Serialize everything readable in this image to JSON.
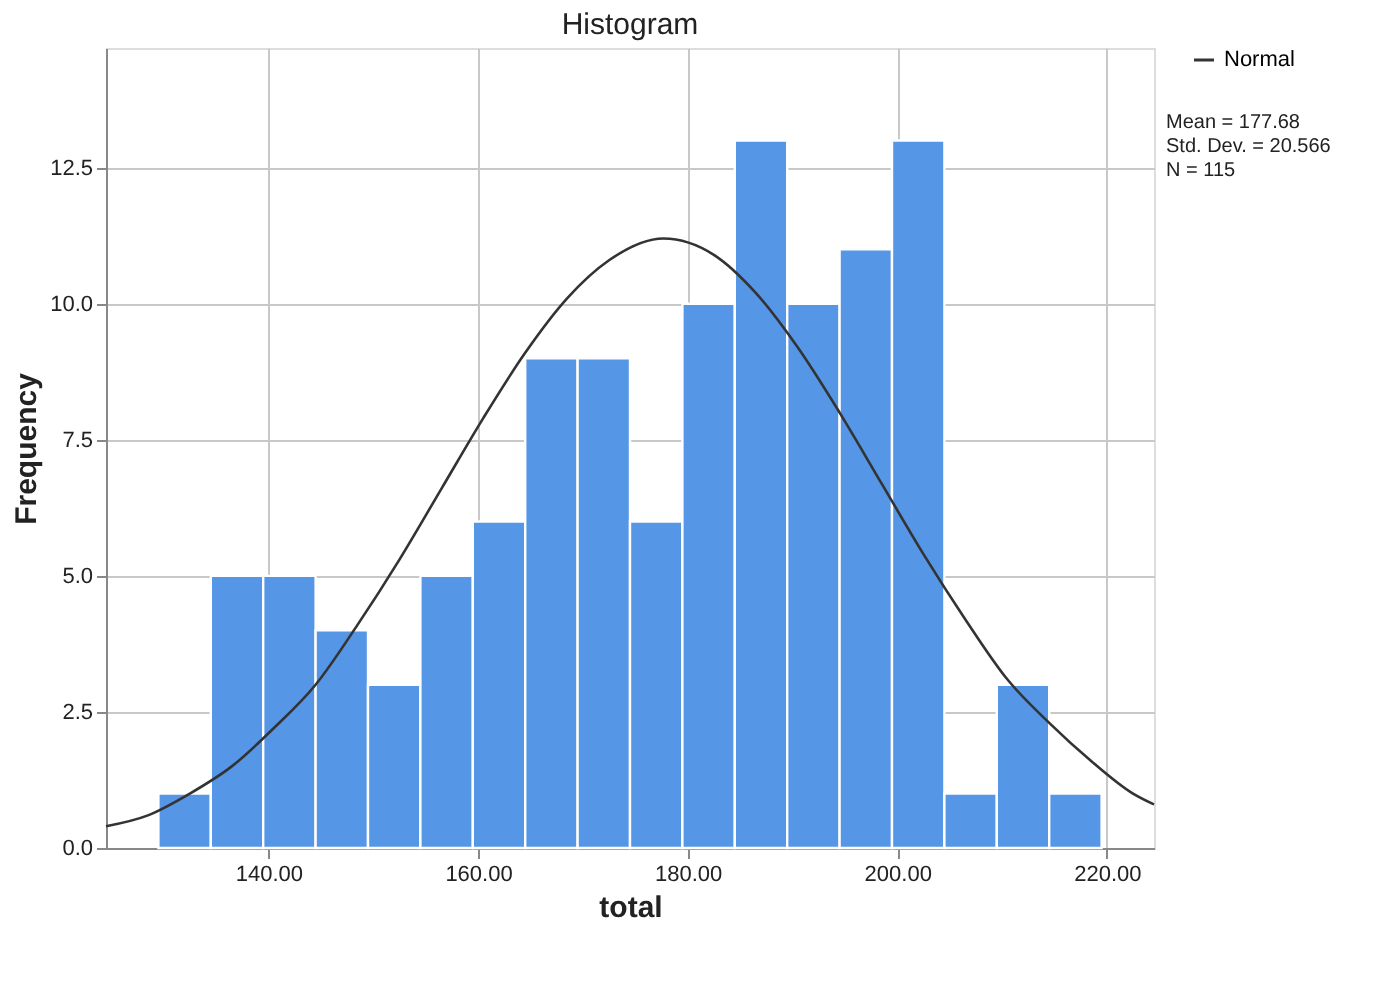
{
  "chart_data": {
    "type": "histogram",
    "title": "Histogram",
    "xlabel": "total",
    "ylabel": "Frequency",
    "bins": [
      129.5,
      134.5,
      139.5,
      144.5,
      149.5,
      154.5,
      159.5,
      164.5,
      169.5,
      174.5,
      179.5,
      184.5,
      189.5,
      194.5,
      199.5,
      204.5,
      209.5,
      214.5,
      219.5
    ],
    "series": [
      {
        "color": "#5596e6",
        "values": [
          1,
          5,
          5,
          4,
          3,
          5,
          6,
          9,
          9,
          6,
          10,
          13,
          10,
          11,
          13,
          1,
          3,
          1
        ]
      },
      {
        "type": "line",
        "name": "Normal",
        "color": "#333333",
        "x": [
          124.5,
          128.5,
          132.5,
          136.5,
          140.5,
          144.5,
          148.5,
          152.5,
          156.5,
          160.5,
          164.5,
          168.5,
          172.5,
          177.68,
          182.5,
          186.5,
          190.5,
          194.5,
          198.5,
          202.5,
          206.5,
          210.5,
          214.5,
          218.5,
          222.5,
          224.5
        ],
        "values": [
          0.4,
          0.6,
          1.0,
          1.5,
          2.2,
          3.0,
          4.1,
          5.3,
          6.6,
          7.9,
          9.1,
          10.1,
          10.8,
          11.2,
          10.9,
          10.2,
          9.2,
          8.0,
          6.7,
          5.4,
          4.2,
          3.1,
          2.3,
          1.6,
          1.0,
          0.8
        ]
      }
    ],
    "xlim": [
      124.5,
      224.5
    ],
    "xticks": [
      {
        "value": 140,
        "label": "140.00"
      },
      {
        "value": 160,
        "label": "160.00"
      },
      {
        "value": 180,
        "label": "180.00"
      },
      {
        "value": 200,
        "label": "200.00"
      },
      {
        "value": 220,
        "label": "220.00"
      }
    ],
    "ylim": [
      0,
      14.7
    ],
    "yticks": [
      {
        "value": 0,
        "label": "0.0"
      },
      {
        "value": 2.5,
        "label": "2.5"
      },
      {
        "value": 5,
        "label": "5.0"
      },
      {
        "value": 7.5,
        "label": "7.5"
      },
      {
        "value": 10,
        "label": "10.0"
      },
      {
        "value": 12.5,
        "label": "12.5"
      }
    ],
    "grid": true,
    "legend": "top right",
    "annotations": [
      "Mean = 177.68",
      "Std. Dev. = 20.566",
      "N = 115"
    ]
  }
}
